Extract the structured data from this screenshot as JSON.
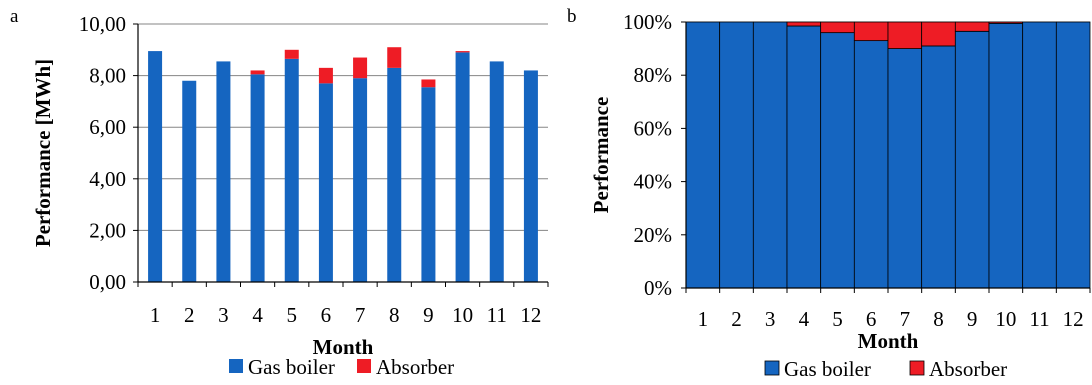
{
  "colors": {
    "gas_boiler": "#1565c0",
    "absorber": "#ee1c25",
    "axis": "#000000"
  },
  "chart_data": [
    {
      "panel_label": "a",
      "type": "bar",
      "stacked": true,
      "categories": [
        "1",
        "2",
        "3",
        "4",
        "5",
        "6",
        "7",
        "8",
        "9",
        "10",
        "11",
        "12"
      ],
      "series": [
        {
          "name": "Gas boiler",
          "values": [
            8.95,
            7.8,
            8.55,
            8.05,
            8.65,
            7.7,
            7.9,
            8.3,
            7.55,
            8.9,
            8.55,
            8.2
          ]
        },
        {
          "name": "Absorber",
          "values": [
            0.0,
            0.0,
            0.0,
            0.15,
            0.35,
            0.6,
            0.8,
            0.8,
            0.3,
            0.05,
            0.0,
            0.0
          ]
        }
      ],
      "xlabel": "Month",
      "ylabel": "Performance [MWh]",
      "ylim": [
        0,
        10
      ],
      "yticks": [
        "0,00",
        "2,00",
        "4,00",
        "6,00",
        "8,00",
        "10,00"
      ],
      "grid": true,
      "legend": "bottom"
    },
    {
      "panel_label": "b",
      "type": "bar",
      "stacked": true,
      "percent": true,
      "categories": [
        "1",
        "2",
        "3",
        "4",
        "5",
        "6",
        "7",
        "8",
        "9",
        "10",
        "11",
        "12"
      ],
      "series": [
        {
          "name": "Gas boiler",
          "values": [
            100,
            100,
            100,
            98.5,
            96,
            93,
            90,
            91,
            96.5,
            99.5,
            100,
            100
          ]
        },
        {
          "name": "Absorber",
          "values": [
            0,
            0,
            0,
            1.5,
            4,
            7,
            10,
            9,
            3.5,
            0.5,
            0,
            0
          ]
        }
      ],
      "xlabel": "Month",
      "ylabel": "Performance",
      "ylim": [
        0,
        100
      ],
      "yticks": [
        "0%",
        "20%",
        "40%",
        "60%",
        "80%",
        "100%"
      ],
      "grid": true,
      "legend": "bottom"
    }
  ]
}
